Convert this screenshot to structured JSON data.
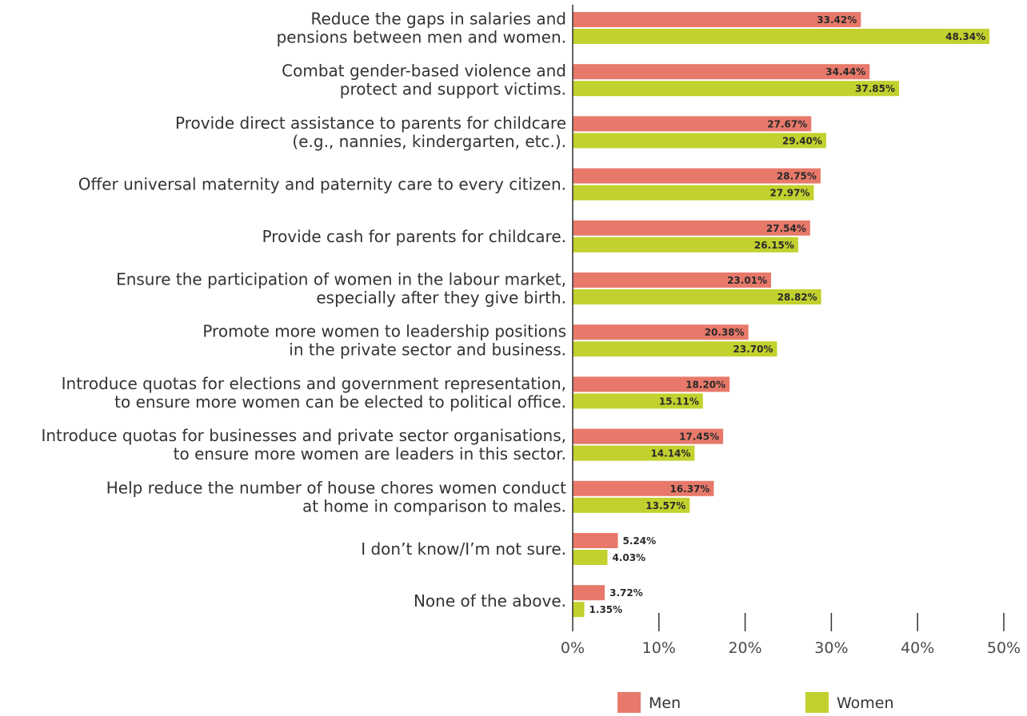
{
  "chart_data": {
    "type": "bar",
    "orientation": "horizontal",
    "categories": [
      [
        "Reduce the gaps in salaries and",
        "pensions between men and women."
      ],
      [
        "Combat gender-based violence and",
        "protect and support victims."
      ],
      [
        "Provide direct assistance to parents for childcare",
        "(e.g., nannies, kindergarten, etc.)."
      ],
      [
        "Offer universal maternity and paternity care to every citizen."
      ],
      [
        "Provide cash for parents for childcare."
      ],
      [
        "Ensure the participation of women in the labour market,",
        "especially after they give birth."
      ],
      [
        "Promote more women to leadership positions",
        "in the private sector and business."
      ],
      [
        "Introduce quotas for elections and government representation,",
        "to ensure more women can be elected to political office."
      ],
      [
        "Introduce quotas for businesses and private sector organisations,",
        "to ensure more women are leaders in this sector."
      ],
      [
        "Help reduce the number of house chores women conduct",
        "at home in comparison to males."
      ],
      [
        "I don’t know/I’m not sure."
      ],
      [
        "None of the above."
      ]
    ],
    "series": [
      {
        "name": "Men",
        "color": "#e8796a",
        "values": [
          33.42,
          34.44,
          27.67,
          28.75,
          27.54,
          23.01,
          20.38,
          18.2,
          17.45,
          16.37,
          5.24,
          3.72
        ],
        "labels": [
          "33.42%",
          "34.44%",
          "27.67%",
          "28.75%",
          "27.54%",
          "23.01%",
          "20.38%",
          "18.20%",
          "17.45%",
          "16.37%",
          "5.24%",
          "3.72%"
        ]
      },
      {
        "name": "Women",
        "color": "#c2d12e",
        "values": [
          48.34,
          37.85,
          29.4,
          27.97,
          26.15,
          28.82,
          23.7,
          15.11,
          14.14,
          13.57,
          4.03,
          1.35
        ],
        "labels": [
          "48.34%",
          "37.85%",
          "29.40%",
          "27.97%",
          "26.15%",
          "28.82%",
          "23.70%",
          "15.11%",
          "14.14%",
          "13.57%",
          "4.03%",
          "1.35%"
        ]
      }
    ],
    "xlim": [
      0,
      50
    ],
    "xticks": [
      "0%",
      "10%",
      "20%",
      "30%",
      "40%",
      "50%"
    ],
    "xtick_values": [
      0,
      10,
      20,
      30,
      40,
      50
    ],
    "grid": false,
    "legend_position": "bottom",
    "legend": [
      "Men",
      "Women"
    ]
  }
}
